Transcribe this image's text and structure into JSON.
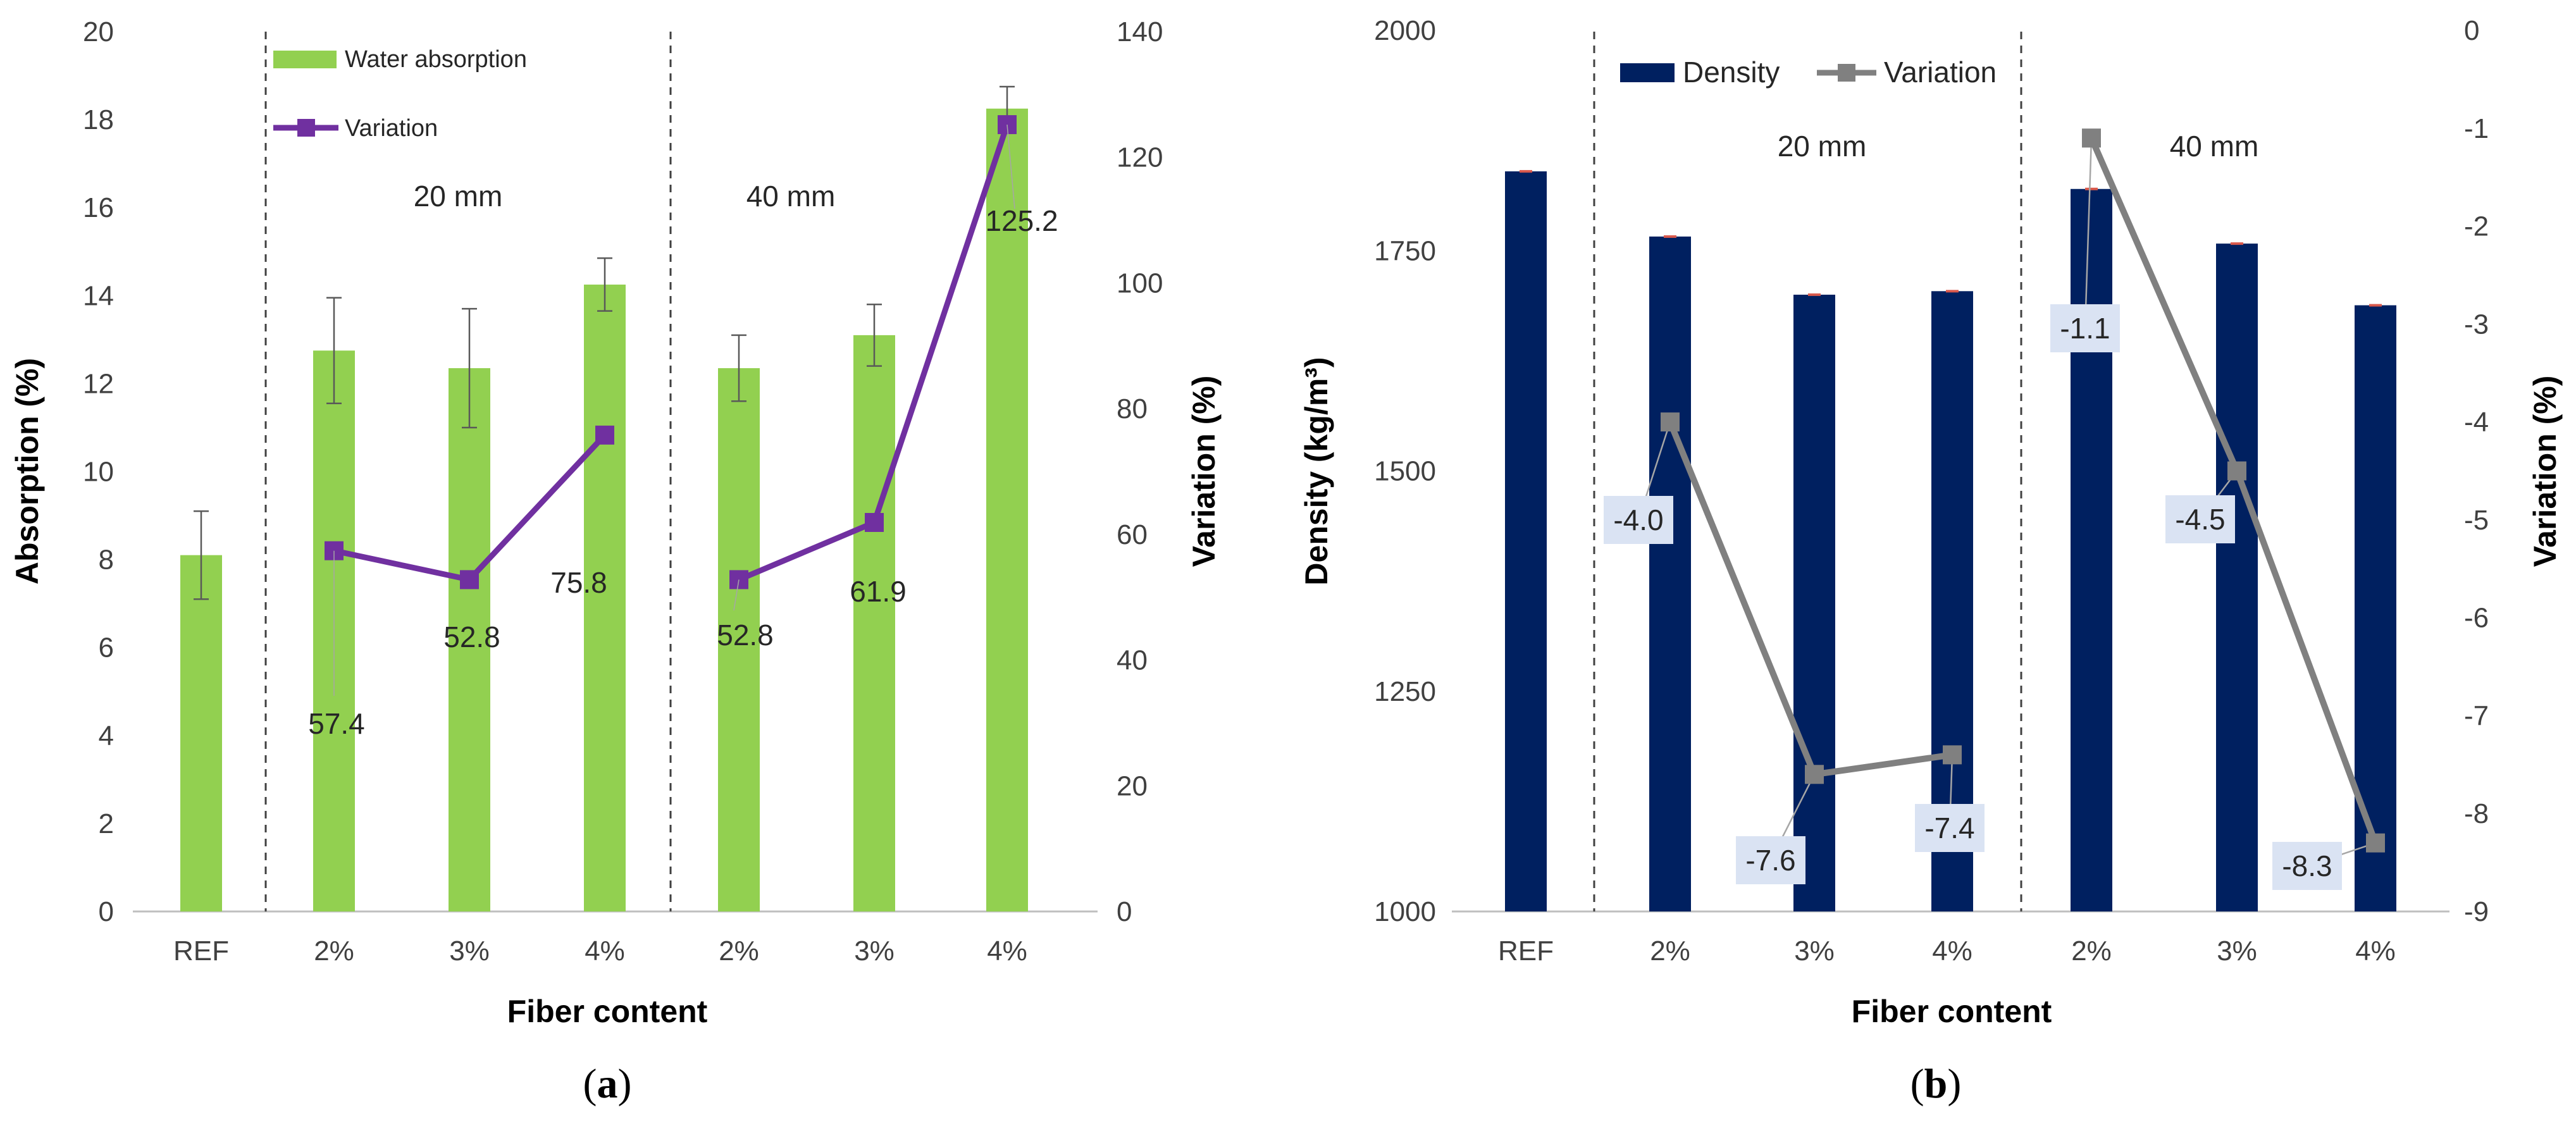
{
  "chart_data": [
    {
      "type": "bar+line",
      "panel_label": "a",
      "categories": [
        "REF",
        "2%",
        "3%",
        "4%",
        "2%",
        "3%",
        "4%"
      ],
      "group_labels": [
        "20 mm",
        "40 mm"
      ],
      "xlabel": "Fiber content",
      "ylabel": "Absorption (%)",
      "ylabel2": "Variation (%)",
      "ylim": [
        0,
        20
      ],
      "ylim2": [
        0,
        140
      ],
      "yticks": [
        "0",
        "2",
        "4",
        "6",
        "8",
        "10",
        "12",
        "14",
        "16",
        "18",
        "20"
      ],
      "yticks2": [
        "0",
        "20",
        "40",
        "60",
        "80",
        "100",
        "120",
        "140"
      ],
      "bar_series": {
        "name": "Water absorption",
        "color": "#92d050",
        "values": [
          8.1,
          12.75,
          12.35,
          14.25,
          12.35,
          13.1,
          18.25
        ],
        "errors": [
          1.0,
          1.2,
          1.35,
          0.6,
          0.75,
          0.7,
          0.5
        ]
      },
      "line_series": {
        "name": "Variation",
        "color": "#7030a0",
        "segments": [
          [
            1,
            2,
            3
          ],
          [
            4,
            5,
            6
          ]
        ],
        "values": [
          null,
          57.4,
          52.8,
          75.8,
          52.8,
          61.9,
          125.2
        ],
        "labels": [
          "",
          "57.4",
          "52.8",
          "75.8",
          "52.8",
          "61.9",
          "125.2"
        ]
      }
    },
    {
      "type": "bar+line",
      "panel_label": "b",
      "categories": [
        "REF",
        "2%",
        "3%",
        "4%",
        "2%",
        "3%",
        "4%"
      ],
      "group_labels": [
        "20 mm",
        "40 mm"
      ],
      "xlabel": "Fiber content",
      "ylabel": "Density (kg/m³)",
      "ylabel2": "Variation (%)",
      "ylim": [
        1000,
        2000
      ],
      "ylim2": [
        -9,
        0
      ],
      "yticks": [
        "1000",
        "1250",
        "1500",
        "1750",
        "2000"
      ],
      "yticks2": [
        "0",
        "-1",
        "-2",
        "-3",
        "-4",
        "-5",
        "-6",
        "-7",
        "-8",
        "-9"
      ],
      "bar_series": {
        "name": "Density",
        "color": "#002060",
        "values": [
          1840,
          1766,
          1700,
          1704,
          1820,
          1758,
          1688
        ]
      },
      "line_series": {
        "name": "Variation",
        "color": "#808080",
        "segments": [
          [
            1,
            2,
            3
          ],
          [
            4,
            5,
            6
          ]
        ],
        "values": [
          null,
          -4.0,
          -7.6,
          -7.4,
          -1.1,
          -4.5,
          -8.3
        ],
        "labels": [
          "",
          "-4.0",
          "-7.6",
          "-7.4",
          "-1.1",
          "-4.5",
          "-8.3"
        ]
      }
    }
  ]
}
